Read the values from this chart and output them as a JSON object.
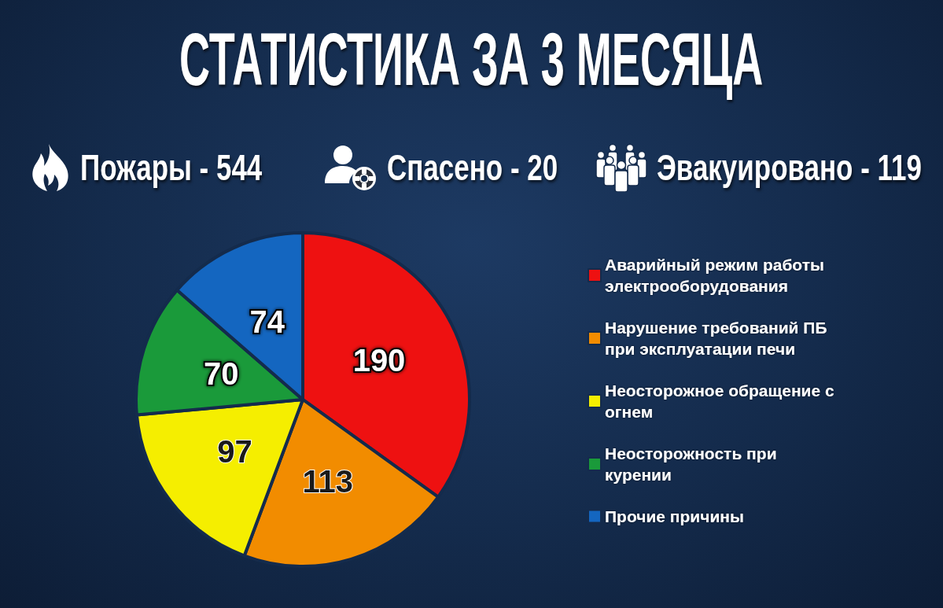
{
  "chart_data": {
    "type": "pie",
    "title": "СТАТИСТИКА ЗА 3 МЕСЯЦА",
    "annotations": [
      "Пожары - 544",
      "Спасено - 20",
      "Эвакуировано - 119"
    ],
    "categories": [
      "Аварийный режим работы электрооборудования",
      "Нарушение требований ПБ при эксплуатации печи",
      "Неосторожное обращение с огнем",
      "Неосторожность при курении",
      "Прочие причины"
    ],
    "values": [
      190,
      113,
      97,
      70,
      74
    ],
    "colors": [
      "#ee1111",
      "#f28c00",
      "#f5ee00",
      "#1a9a3a",
      "#1466c0"
    ],
    "data_labels": true,
    "legend": "right"
  }
}
